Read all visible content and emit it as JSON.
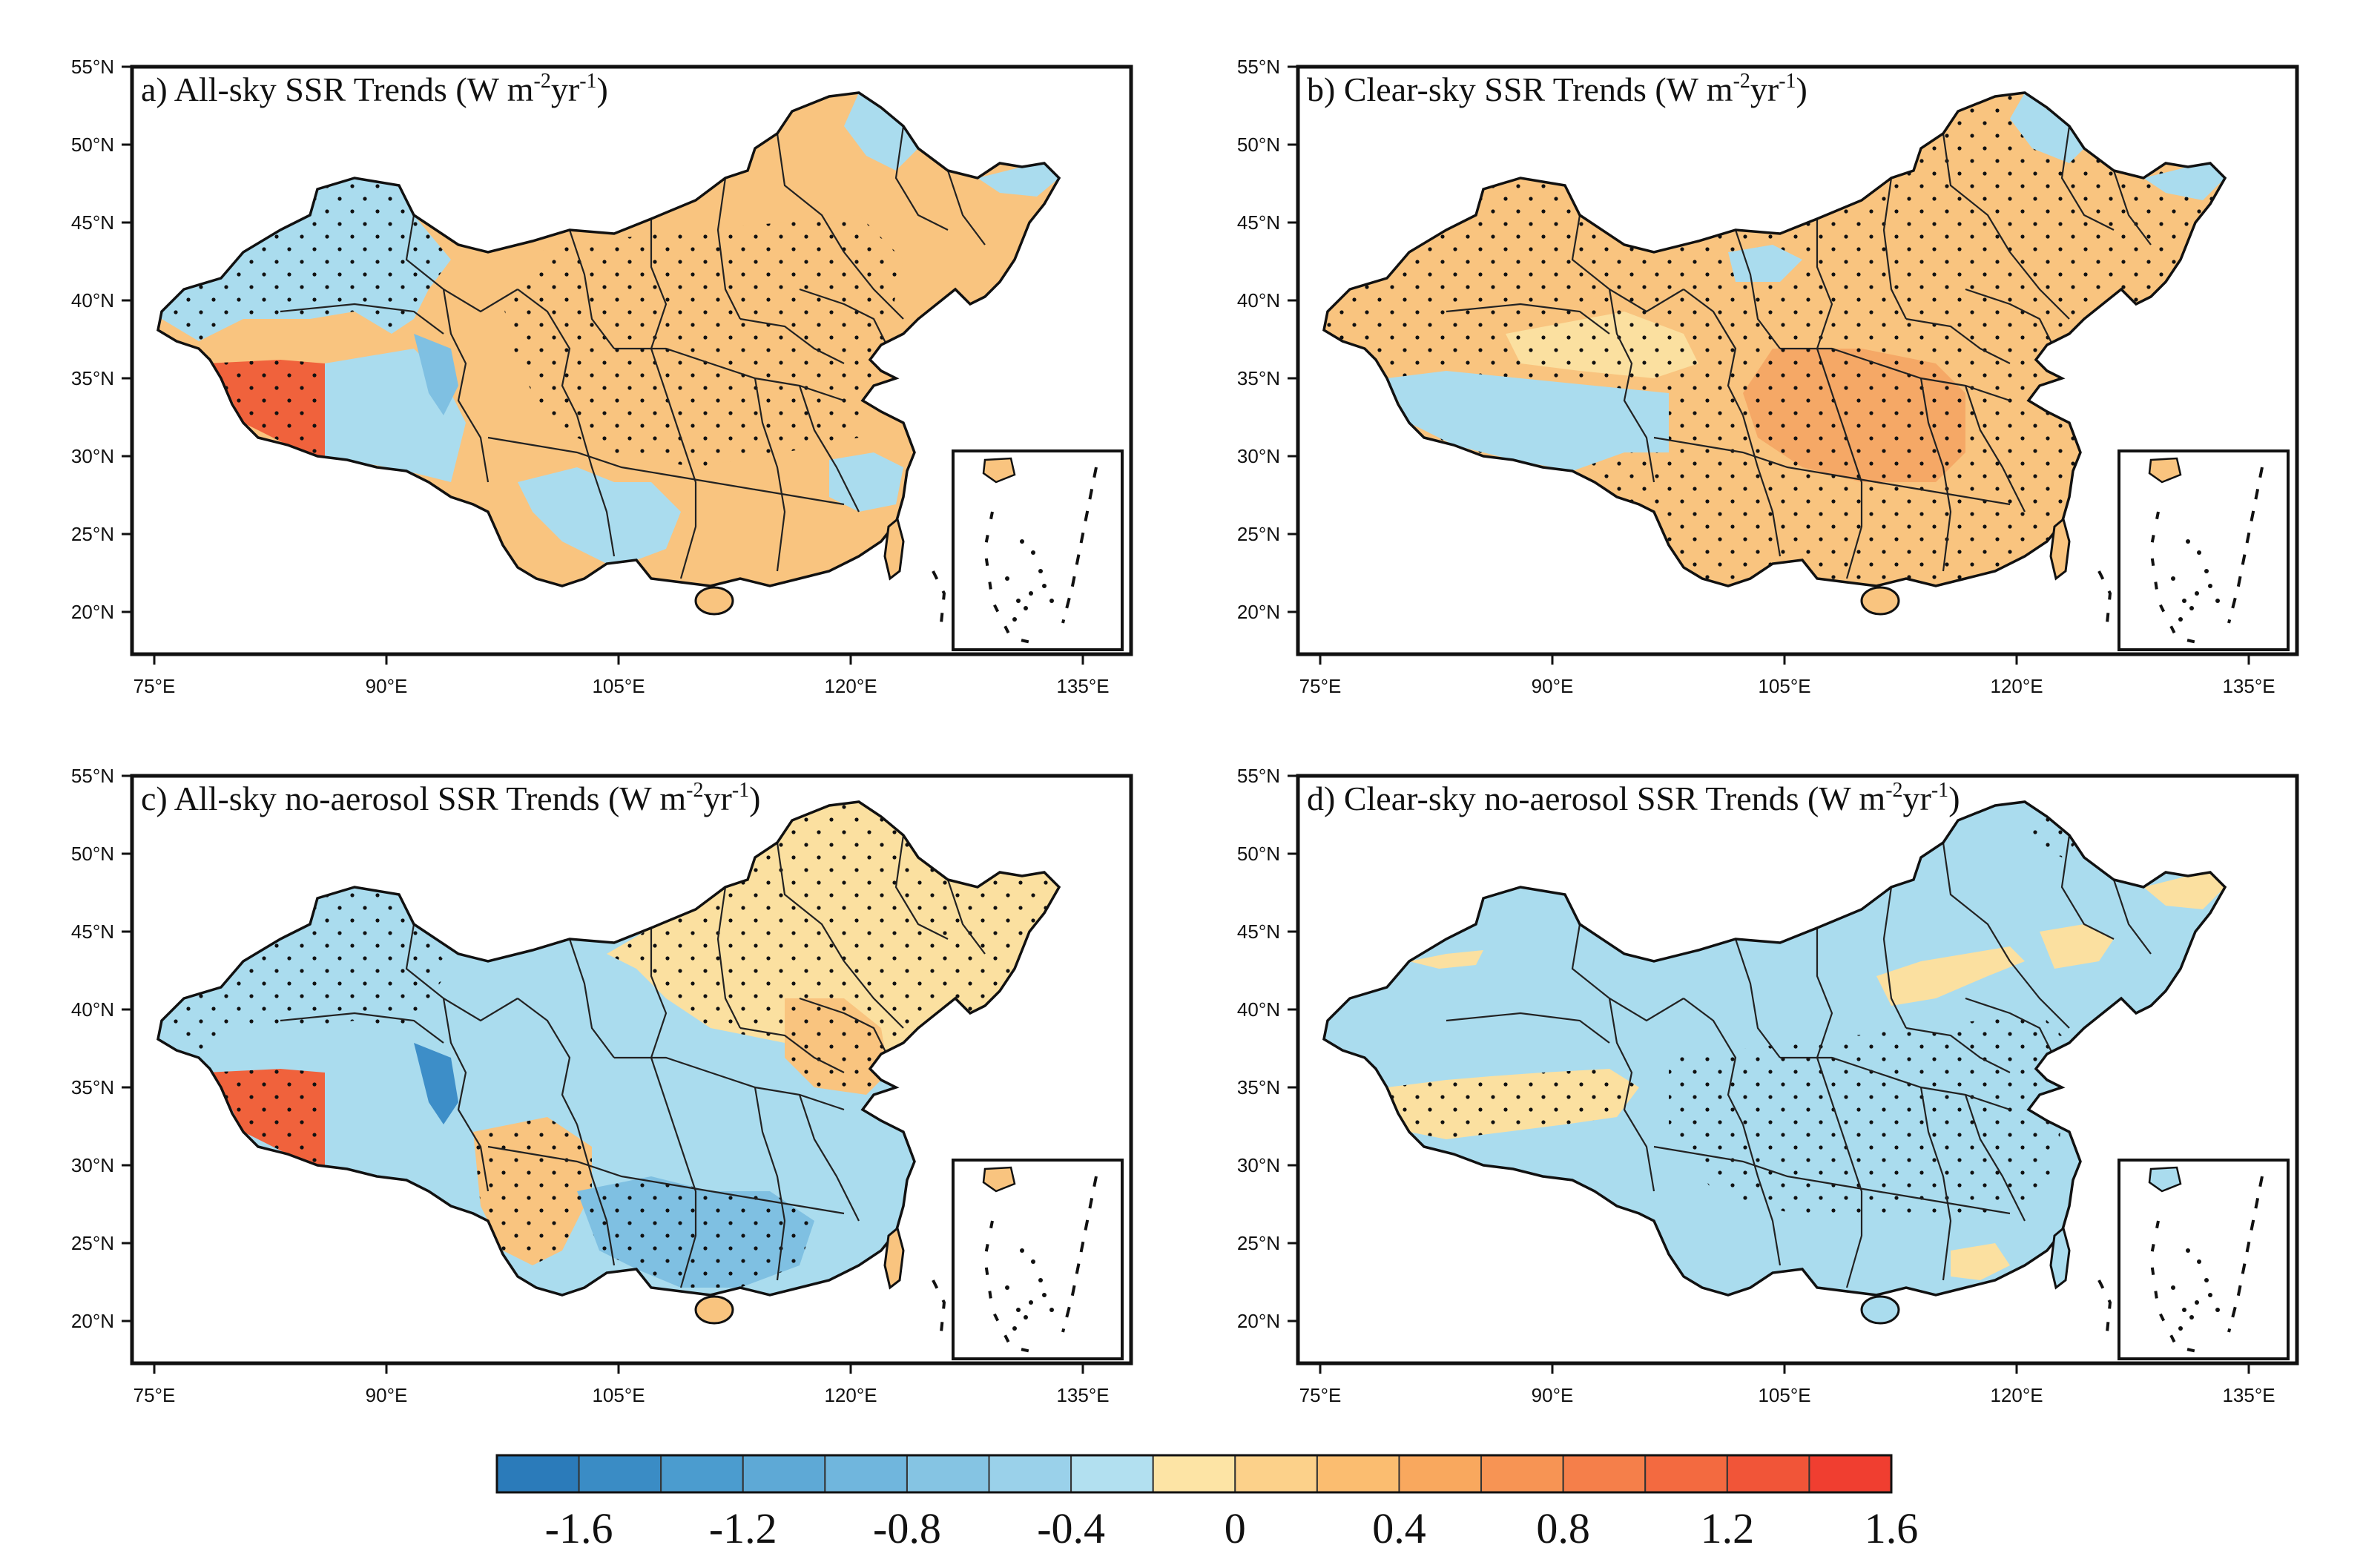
{
  "figure": {
    "panels": [
      {
        "id": "a",
        "label": "a) All-sky SSR Trends (W m",
        "unit_sup1": "-2",
        "unit_mid": "yr",
        "unit_sup2": "-1",
        "unit_end": ")"
      },
      {
        "id": "b",
        "label": "b) Clear-sky SSR Trends (W m",
        "unit_sup1": "-2",
        "unit_mid": "yr",
        "unit_sup2": "-1",
        "unit_end": ")"
      },
      {
        "id": "c",
        "label": "c) All-sky no-aerosol SSR Trends (W m",
        "unit_sup1": "-2",
        "unit_mid": "yr",
        "unit_sup2": "-1",
        "unit_end": ")"
      },
      {
        "id": "d",
        "label": "d) Clear-sky no-aerosol SSR Trends (W m",
        "unit_sup1": "-2",
        "unit_mid": "yr",
        "unit_sup2": "-1",
        "unit_end": ")"
      }
    ],
    "lat_ticks": [
      "55°N",
      "50°N",
      "45°N",
      "40°N",
      "35°N",
      "30°N",
      "25°N",
      "20°N"
    ],
    "lon_ticks": [
      "75°E",
      "90°E",
      "105°E",
      "120°E",
      "135°E"
    ],
    "colorbar": {
      "colors": [
        "#2b7bba",
        "#3a8cc5",
        "#4b9ccf",
        "#5ea9d6",
        "#70b6dd",
        "#85c4e3",
        "#9ad1ea",
        "#b2e0f0",
        "#fde4a5",
        "#fcd18a",
        "#fbbd70",
        "#f9a85e",
        "#f79454",
        "#f57f4a",
        "#f36a40",
        "#f15538",
        "#f03e30"
      ],
      "labels": [
        "-1.6",
        "-1.2",
        "-0.8",
        "-0.4",
        "0",
        "0.4",
        "0.8",
        "1.2",
        "1.6"
      ]
    },
    "palette": {
      "blue_light": "#aadcee",
      "blue_mid": "#7fc0e2",
      "blue_dark": "#3d8ec8",
      "yellow": "#fbe0a0",
      "orange_light": "#f9c47f",
      "orange": "#f5a866",
      "red": "#f0623c"
    }
  }
}
